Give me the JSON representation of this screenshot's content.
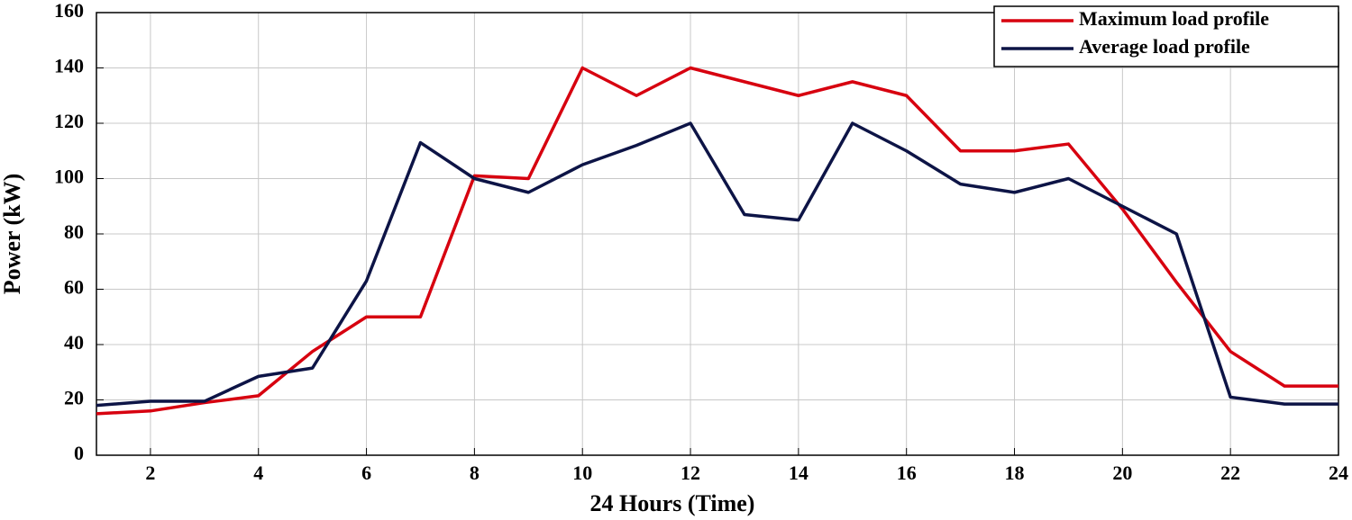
{
  "chart_data": {
    "type": "line",
    "xlabel": "24 Hours (Time)",
    "ylabel": "Power (kW)",
    "x": [
      1,
      2,
      3,
      4,
      5,
      6,
      7,
      8,
      9,
      10,
      11,
      12,
      13,
      14,
      15,
      16,
      17,
      18,
      19,
      20,
      21,
      22,
      23,
      24
    ],
    "series": [
      {
        "name": "Maximum load profile",
        "color": "#d7000f",
        "values": [
          15,
          16,
          19,
          21.5,
          37.5,
          50,
          50,
          101,
          100,
          140,
          130,
          140,
          135,
          130,
          135,
          130,
          110,
          110,
          112.5,
          89,
          62.5,
          37.5,
          25,
          25
        ]
      },
      {
        "name": "Average load profile",
        "color": "#0d1446",
        "values": [
          18,
          19.5,
          19.5,
          28.5,
          31.5,
          63,
          113,
          100,
          95,
          105,
          112,
          120,
          87,
          85,
          120,
          110,
          98,
          95,
          100,
          90,
          80,
          21,
          18.5,
          18.5
        ]
      }
    ],
    "xlim": [
      1,
      24
    ],
    "xticks": [
      2,
      4,
      6,
      8,
      10,
      12,
      14,
      16,
      18,
      20,
      22,
      24
    ],
    "ylim": [
      0,
      160
    ],
    "yticks": [
      0,
      20,
      40,
      60,
      80,
      100,
      120,
      140,
      160
    ],
    "grid": true,
    "legend": "upper right"
  }
}
